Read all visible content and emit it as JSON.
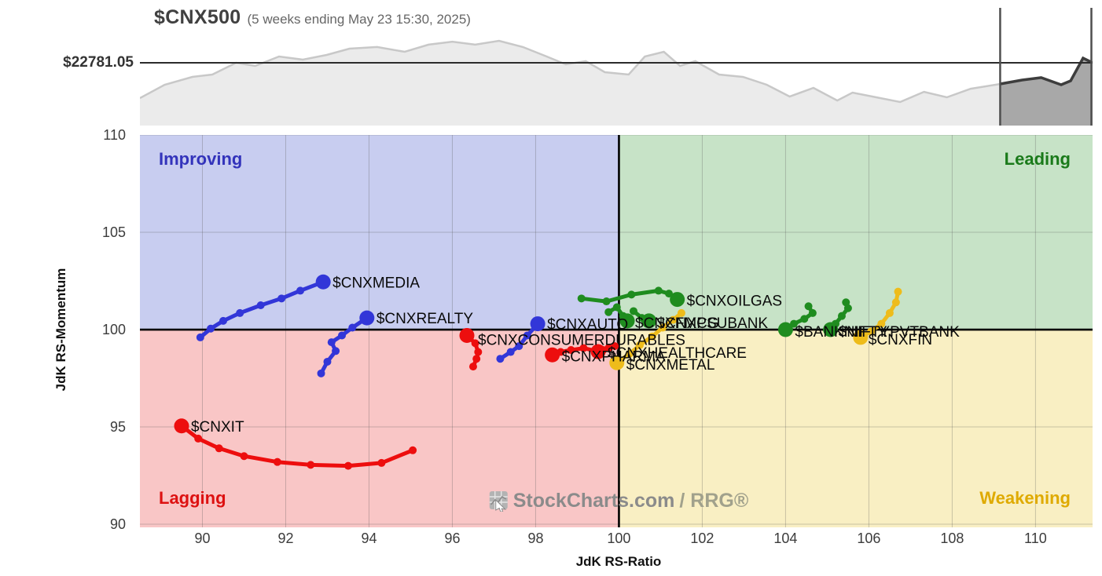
{
  "header": {
    "symbol": "$CNX500",
    "subtitle": "(5 weeks ending May 23 15:30, 2025)",
    "level_label": "$22781.05"
  },
  "watermark": {
    "brand": "StockCharts.com",
    "suffix": "/ RRG®"
  },
  "quadrants": {
    "improving": {
      "label": "Improving",
      "color": "#3333bb"
    },
    "leading": {
      "label": "Leading",
      "color": "#1a7a1a"
    },
    "lagging": {
      "label": "Lagging",
      "color": "#dd1111"
    },
    "weakening": {
      "label": "Weakening",
      "color": "#dfaa00"
    }
  },
  "colors": {
    "blue": "#3236d8",
    "red": "#ed0e0e",
    "green": "#1f8c1f",
    "yellow": "#eebc1b",
    "quad_improving_bg": "#c8cdf0",
    "quad_leading_bg": "#c7e3c7",
    "quad_lagging_bg": "#f9c6c6",
    "quad_weakening_bg": "#f9efc3",
    "grid": "rgba(85,85,85,0.3)",
    "divider": "#000000",
    "price_area": "#ebebeb",
    "price_line": "#c8c8c8",
    "price_window_area": "#a8a8a8",
    "price_window_line": "#3d3d3d",
    "level_line": "#2b2b2b",
    "window_line": "#4f4f4f"
  },
  "chart_data": [
    {
      "type": "area",
      "title": "$CNX500",
      "subtitle": "(5 weeks ending May 23 15:30, 2025)",
      "level_label": "$22781.05",
      "level_y_norm": 0.533,
      "window_start_frac": 0.903,
      "points_main": [
        [
          0.0,
          0.233
        ],
        [
          0.026,
          0.347
        ],
        [
          0.055,
          0.413
        ],
        [
          0.076,
          0.433
        ],
        [
          0.101,
          0.533
        ],
        [
          0.121,
          0.507
        ],
        [
          0.146,
          0.587
        ],
        [
          0.171,
          0.56
        ],
        [
          0.196,
          0.6
        ],
        [
          0.22,
          0.653
        ],
        [
          0.249,
          0.667
        ],
        [
          0.278,
          0.627
        ],
        [
          0.303,
          0.687
        ],
        [
          0.328,
          0.713
        ],
        [
          0.352,
          0.687
        ],
        [
          0.377,
          0.72
        ],
        [
          0.402,
          0.667
        ],
        [
          0.427,
          0.587
        ],
        [
          0.447,
          0.52
        ],
        [
          0.468,
          0.547
        ],
        [
          0.488,
          0.453
        ],
        [
          0.513,
          0.433
        ],
        [
          0.53,
          0.587
        ],
        [
          0.55,
          0.627
        ],
        [
          0.567,
          0.507
        ],
        [
          0.583,
          0.547
        ],
        [
          0.608,
          0.433
        ],
        [
          0.633,
          0.413
        ],
        [
          0.658,
          0.347
        ],
        [
          0.682,
          0.247
        ],
        [
          0.707,
          0.32
        ],
        [
          0.732,
          0.213
        ],
        [
          0.748,
          0.28
        ],
        [
          0.773,
          0.24
        ],
        [
          0.798,
          0.2
        ],
        [
          0.823,
          0.287
        ],
        [
          0.847,
          0.24
        ],
        [
          0.872,
          0.313
        ],
        [
          0.903,
          0.353
        ]
      ],
      "points_window": [
        [
          0.903,
          0.353
        ],
        [
          0.926,
          0.387
        ],
        [
          0.946,
          0.407
        ],
        [
          0.967,
          0.347
        ],
        [
          0.977,
          0.38
        ],
        [
          0.99,
          0.573
        ],
        [
          1.0,
          0.533
        ]
      ]
    },
    {
      "type": "scatter",
      "variant": "rrg-trails",
      "xlabel": "JdK RS-Ratio",
      "ylabel": "JdK RS-Momentum",
      "xlim": [
        88.5,
        111.37
      ],
      "ylim": [
        89.84,
        110
      ],
      "x_ticks": [
        90,
        92,
        94,
        96,
        98,
        100,
        102,
        104,
        106,
        108,
        110
      ],
      "y_ticks": [
        90,
        95,
        100,
        105,
        110
      ],
      "center": [
        100,
        100
      ],
      "series": [
        {
          "name": "$CNXMEDIA",
          "color": "blue",
          "label_dx": 12,
          "label_dy": 7,
          "points": [
            [
              89.95,
              99.6
            ],
            [
              90.2,
              100.05
            ],
            [
              90.5,
              100.45
            ],
            [
              90.9,
              100.85
            ],
            [
              91.4,
              101.25
            ],
            [
              91.9,
              101.6
            ],
            [
              92.35,
              102.0
            ],
            [
              92.9,
              102.45
            ]
          ]
        },
        {
          "name": "$CNXREALTY",
          "color": "blue",
          "label_dx": 12,
          "label_dy": 7,
          "points": [
            [
              92.85,
              97.75
            ],
            [
              93.0,
              98.35
            ],
            [
              93.2,
              98.9
            ],
            [
              93.1,
              99.35
            ],
            [
              93.35,
              99.7
            ],
            [
              93.6,
              100.1
            ],
            [
              93.95,
              100.6
            ]
          ]
        },
        {
          "name": "$CNXAUTO",
          "color": "blue",
          "label_dx": 12,
          "label_dy": 7,
          "points": [
            [
              97.15,
              98.5
            ],
            [
              97.4,
              98.85
            ],
            [
              97.6,
              99.15
            ],
            [
              97.8,
              99.7
            ],
            [
              98.05,
              100.3
            ]
          ]
        },
        {
          "name": "$CNXIT",
          "color": "red",
          "label_dx": 12,
          "label_dy": 7,
          "points": [
            [
              95.05,
              93.8
            ],
            [
              94.3,
              93.15
            ],
            [
              93.5,
              93.0
            ],
            [
              92.6,
              93.05
            ],
            [
              91.8,
              93.2
            ],
            [
              91.0,
              93.5
            ],
            [
              90.4,
              93.9
            ],
            [
              89.9,
              94.4
            ],
            [
              89.5,
              95.05
            ]
          ]
        },
        {
          "name": "$CNXCONSUMERDURABLES",
          "color": "red",
          "label_dx": 14,
          "label_dy": 12,
          "points": [
            [
              96.5,
              98.1
            ],
            [
              96.58,
              98.5
            ],
            [
              96.62,
              98.85
            ],
            [
              96.55,
              99.3
            ],
            [
              96.35,
              99.7
            ]
          ]
        },
        {
          "name": "$CNXPHARMA",
          "color": "red",
          "label_dx": 12,
          "label_dy": 8,
          "points": [
            [
              99.45,
              98.9
            ],
            [
              99.15,
              99.05
            ],
            [
              98.85,
              98.95
            ],
            [
              98.6,
              98.85
            ],
            [
              98.4,
              98.7
            ]
          ]
        },
        {
          "name": "$CNXHEALTHCARE",
          "color": "red",
          "label_dx": 12,
          "label_dy": 8,
          "points": [
            [
              99.9,
              99.15
            ],
            [
              99.75,
              99.05
            ],
            [
              99.62,
              98.95
            ],
            [
              99.5,
              98.87
            ]
          ]
        },
        {
          "name": "$CNXMETAL",
          "color": "yellow",
          "label_dx": 12,
          "label_dy": 9,
          "points": [
            [
              101.5,
              100.85
            ],
            [
              101.3,
              100.5
            ],
            [
              101.05,
              100.1
            ],
            [
              100.8,
              99.65
            ],
            [
              100.5,
              99.2
            ],
            [
              100.25,
              98.75
            ],
            [
              99.95,
              98.3
            ]
          ]
        },
        {
          "name": "$CNXOILGAS",
          "color": "green",
          "label_dx": 12,
          "label_dy": 8,
          "points": [
            [
              99.1,
              101.6
            ],
            [
              99.7,
              101.45
            ],
            [
              100.3,
              101.8
            ],
            [
              100.95,
              102.0
            ],
            [
              101.2,
              101.85
            ],
            [
              101.4,
              101.55
            ]
          ]
        },
        {
          "name": "$CNXFMCG",
          "color": "green",
          "label_dx": 10,
          "label_dy": 9,
          "points": [
            [
              99.75,
              100.9
            ],
            [
              99.95,
              101.15
            ],
            [
              100.1,
              100.7
            ],
            [
              100.2,
              100.45
            ]
          ]
        },
        {
          "name": "$CNXPSUBANK",
          "color": "green",
          "label_dx": 10,
          "label_dy": 9,
          "points": [
            [
              100.35,
              100.95
            ],
            [
              100.55,
              100.6
            ],
            [
              100.72,
              100.45
            ]
          ]
        },
        {
          "name": "$BANKNIFTY",
          "color": "green",
          "label_dx": 12,
          "label_dy": 9,
          "points": [
            [
              104.55,
              101.2
            ],
            [
              104.65,
              100.85
            ],
            [
              104.45,
              100.55
            ],
            [
              104.2,
              100.3
            ],
            [
              104.0,
              100.0
            ]
          ]
        },
        {
          "name": "$NIFTYPVTBANK",
          "color": "green",
          "label_dx": 10,
          "label_dy": 9,
          "points": [
            [
              105.45,
              101.4
            ],
            [
              105.5,
              101.1
            ],
            [
              105.35,
              100.7
            ],
            [
              105.2,
              100.3
            ],
            [
              105.08,
              100.0
            ]
          ]
        },
        {
          "name": "$CNXFIN",
          "color": "yellow",
          "label_dx": 10,
          "label_dy": 9,
          "points": [
            [
              106.7,
              101.95
            ],
            [
              106.65,
              101.4
            ],
            [
              106.5,
              100.85
            ],
            [
              106.3,
              100.3
            ],
            [
              106.05,
              99.9
            ],
            [
              105.8,
              99.6
            ]
          ]
        }
      ]
    }
  ]
}
